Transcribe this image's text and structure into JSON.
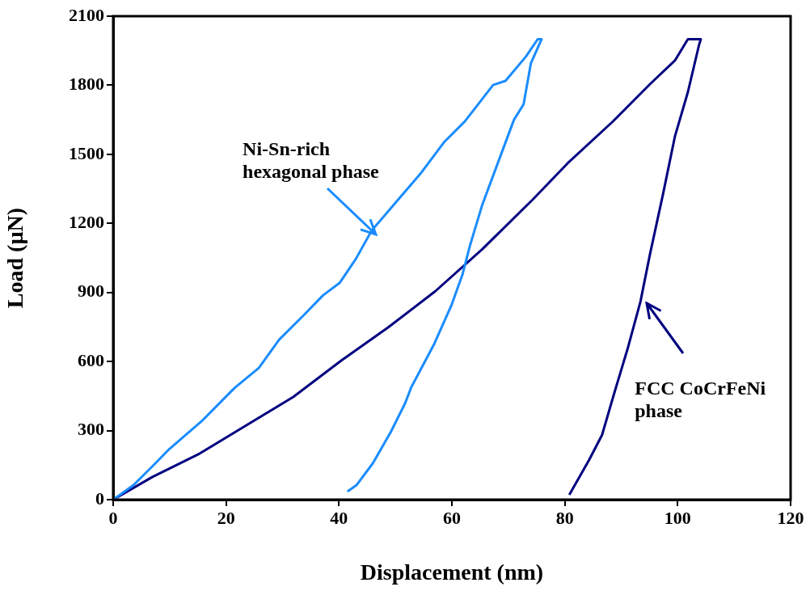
{
  "chart_data": {
    "type": "line",
    "xlabel": "Displacement (nm)",
    "ylabel": "Load (µN)",
    "xlim": [
      0,
      120
    ],
    "xticks": [
      0,
      20,
      40,
      60,
      80,
      100,
      120
    ],
    "ylim": [
      0,
      2100
    ],
    "yticks": [
      0,
      300,
      600,
      900,
      1200,
      1500,
      1800,
      2100
    ],
    "grid": false,
    "legend": false,
    "marker": "none",
    "line_style": "solid",
    "series": [
      {
        "color": "#1a8cff",
        "x": [
          0,
          3.6,
          7.2,
          10,
          15.8,
          21.5,
          25.8,
          29.4,
          33.7,
          37.2,
          40.1,
          43,
          45.8,
          50.1,
          54.4,
          58.7,
          62.3,
          67.3,
          69.5,
          73.1,
          75.2,
          75.9,
          74.0,
          72.7,
          71.0,
          68.7,
          65.4,
          63.2,
          61.9,
          59.9,
          56.9,
          52.8,
          51.7,
          49.2,
          46.0,
          43.1,
          41.5
        ],
        "values": [
          0,
          63,
          151,
          221,
          344,
          485,
          572,
          695,
          800,
          888,
          941,
          1046,
          1169,
          1292,
          1415,
          1555,
          1643,
          1801,
          1819,
          1924,
          2000,
          2000,
          1896,
          1717,
          1650,
          1499,
          1282,
          1103,
          980,
          843,
          678,
          488,
          418,
          295,
          158,
          63,
          35
        ]
      },
      {
        "color": "#000080",
        "x": [
          0,
          6.9,
          15.3,
          23.6,
          31.9,
          40.4,
          48.7,
          57.1,
          65.4,
          74.3,
          80.5,
          88.4,
          95.1,
          99.5,
          101.8,
          104.1,
          103.8,
          101.8,
          99.5,
          97.4,
          95.1,
          93.4,
          91.1,
          88.9,
          86.6,
          84.3,
          80.8
        ],
        "values": [
          0,
          98,
          200,
          323,
          446,
          604,
          748,
          906,
          1088,
          1303,
          1461,
          1640,
          1805,
          1907,
          2000,
          2000,
          1977,
          1770,
          1577,
          1327,
          1067,
          860,
          653,
          474,
          281,
          172,
          21
        ]
      }
    ],
    "annotations": [
      "Ni-Sn-rich\nhexagonal phase",
      "FCC CoCrFeNi\nphase"
    ]
  }
}
